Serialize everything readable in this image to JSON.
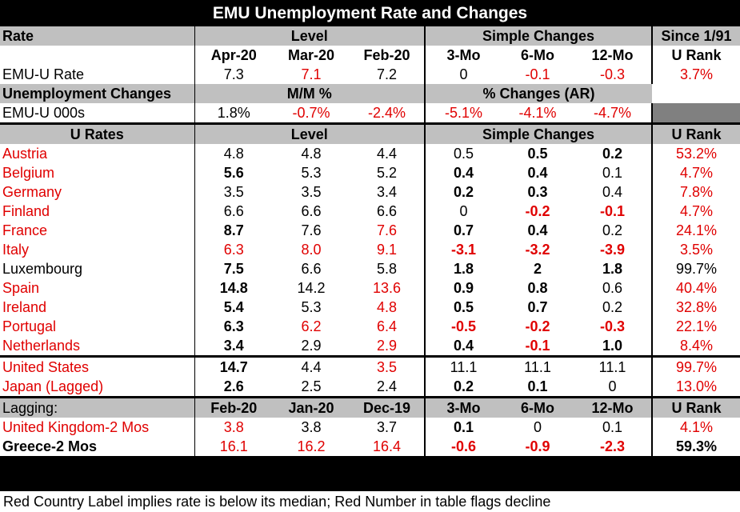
{
  "title": "EMU Unemployment Rate and Changes",
  "header1": {
    "rate": "Rate",
    "level": "Level",
    "simple": "Simple Changes",
    "since": "Since 1/91"
  },
  "header2": {
    "c1": "Apr-20",
    "c2": "Mar-20",
    "c3": "Feb-20",
    "c4": "3-Mo",
    "c5": "6-Mo",
    "c6": "12-Mo",
    "c7": "U Rank"
  },
  "emu_rate": {
    "label": "EMU-U Rate",
    "v": [
      "7.3",
      "7.1",
      "7.2",
      "0",
      "-0.1",
      "-0.3",
      "3.7%"
    ]
  },
  "unemp_changes": {
    "label": "Unemployment Changes",
    "mm": "M/M %",
    "pct": "% Changes (AR)"
  },
  "emu_000s": {
    "label": "EMU-U 000s",
    "v": [
      "1.8%",
      "-0.7%",
      "-2.4%",
      "-5.1%",
      "-4.1%",
      "-4.7%"
    ]
  },
  "urates_header": {
    "label": "U Rates",
    "level": "Level",
    "simple": "Simple Changes",
    "rank": "U Rank"
  },
  "countries": [
    {
      "name": "Austria",
      "v": [
        "4.8",
        "4.8",
        "4.4",
        "0.5",
        "0.5",
        "0.2",
        "53.2%"
      ]
    },
    {
      "name": "Belgium",
      "v": [
        "5.6",
        "5.3",
        "5.2",
        "0.4",
        "0.4",
        "0.1",
        "4.7%"
      ]
    },
    {
      "name": "Germany",
      "v": [
        "3.5",
        "3.5",
        "3.4",
        "0.2",
        "0.3",
        "0.4",
        "7.8%"
      ]
    },
    {
      "name": "Finland",
      "v": [
        "6.6",
        "6.6",
        "6.6",
        "0",
        "-0.2",
        "-0.1",
        "4.7%"
      ]
    },
    {
      "name": "France",
      "v": [
        "8.7",
        "7.6",
        "7.6",
        "0.7",
        "0.4",
        "0.2",
        "24.1%"
      ]
    },
    {
      "name": "Italy",
      "v": [
        "6.3",
        "8.0",
        "9.1",
        "-3.1",
        "-3.2",
        "-3.9",
        "3.5%"
      ]
    },
    {
      "name": "Luxembourg",
      "v": [
        "7.5",
        "6.6",
        "5.8",
        "1.8",
        "2",
        "1.8",
        "99.7%"
      ]
    },
    {
      "name": "Spain",
      "v": [
        "14.8",
        "14.2",
        "13.6",
        "0.9",
        "0.8",
        "0.6",
        "40.4%"
      ]
    },
    {
      "name": "Ireland",
      "v": [
        "5.4",
        "5.3",
        "4.8",
        "0.5",
        "0.7",
        "0.2",
        "32.8%"
      ]
    },
    {
      "name": "Portugal",
      "v": [
        "6.3",
        "6.2",
        "6.4",
        "-0.5",
        "-0.2",
        "-0.3",
        "22.1%"
      ]
    },
    {
      "name": "Netherlands",
      "v": [
        "3.4",
        "2.9",
        "2.9",
        "0.4",
        "-0.1",
        "1.0",
        "8.4%"
      ]
    }
  ],
  "others": [
    {
      "name": "United States",
      "v": [
        "14.7",
        "4.4",
        "3.5",
        "11.1",
        "11.1",
        "11.1",
        "99.7%"
      ]
    },
    {
      "name": "Japan (Lagged)",
      "v": [
        "2.6",
        "2.5",
        "2.4",
        "0.2",
        "0.1",
        "0",
        "13.0%"
      ]
    }
  ],
  "lagging_header": {
    "label": "Lagging:",
    "c1": "Feb-20",
    "c2": "Jan-20",
    "c3": "Dec-19",
    "c4": "3-Mo",
    "c5": "6-Mo",
    "c6": "12-Mo",
    "c7": "U Rank"
  },
  "lagging": [
    {
      "name": "United Kingdom-2 Mos",
      "v": [
        "3.8",
        "3.8",
        "3.7",
        "0.1",
        "0",
        "0.1",
        "4.1%"
      ]
    },
    {
      "name": "Greece-2 Mos",
      "v": [
        "16.1",
        "16.2",
        "16.4",
        "-0.6",
        "-0.9",
        "-2.3",
        "59.3%"
      ]
    }
  ],
  "footer": "Red Country Label implies rate is below its median; Red Number in table flags decline",
  "colors": {
    "flag_red": "#e00000",
    "header_gray": "#c0c0c0"
  }
}
